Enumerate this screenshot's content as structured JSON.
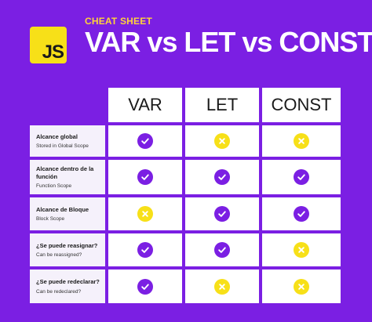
{
  "header": {
    "logo_text": "JS",
    "label": "CHEAT SHEET",
    "title": "VAR vs LET vs CONST"
  },
  "colors": {
    "background": "#7b1fe3",
    "check": "#7b1fe3",
    "cross": "#f7e018",
    "label_yellow": "#ffd23a"
  },
  "table": {
    "columns": [
      "VAR",
      "LET",
      "CONST"
    ],
    "rows": [
      {
        "label": "Alcance global",
        "sub": "Stored in Global Scope",
        "values": [
          "check",
          "cross",
          "cross"
        ]
      },
      {
        "label": "Alcance dentro de la función",
        "sub": "Function Scope",
        "values": [
          "check",
          "check",
          "check"
        ]
      },
      {
        "label": "Alcance de Bloque",
        "sub": "Block Scope",
        "values": [
          "cross",
          "check",
          "check"
        ]
      },
      {
        "label": "¿Se puede reasignar?",
        "sub": "Can be reassigned?",
        "values": [
          "check",
          "check",
          "cross"
        ]
      },
      {
        "label": "¿Se puede redeclarar?",
        "sub": "Can be redeclared?",
        "values": [
          "check",
          "cross",
          "cross"
        ]
      }
    ]
  }
}
